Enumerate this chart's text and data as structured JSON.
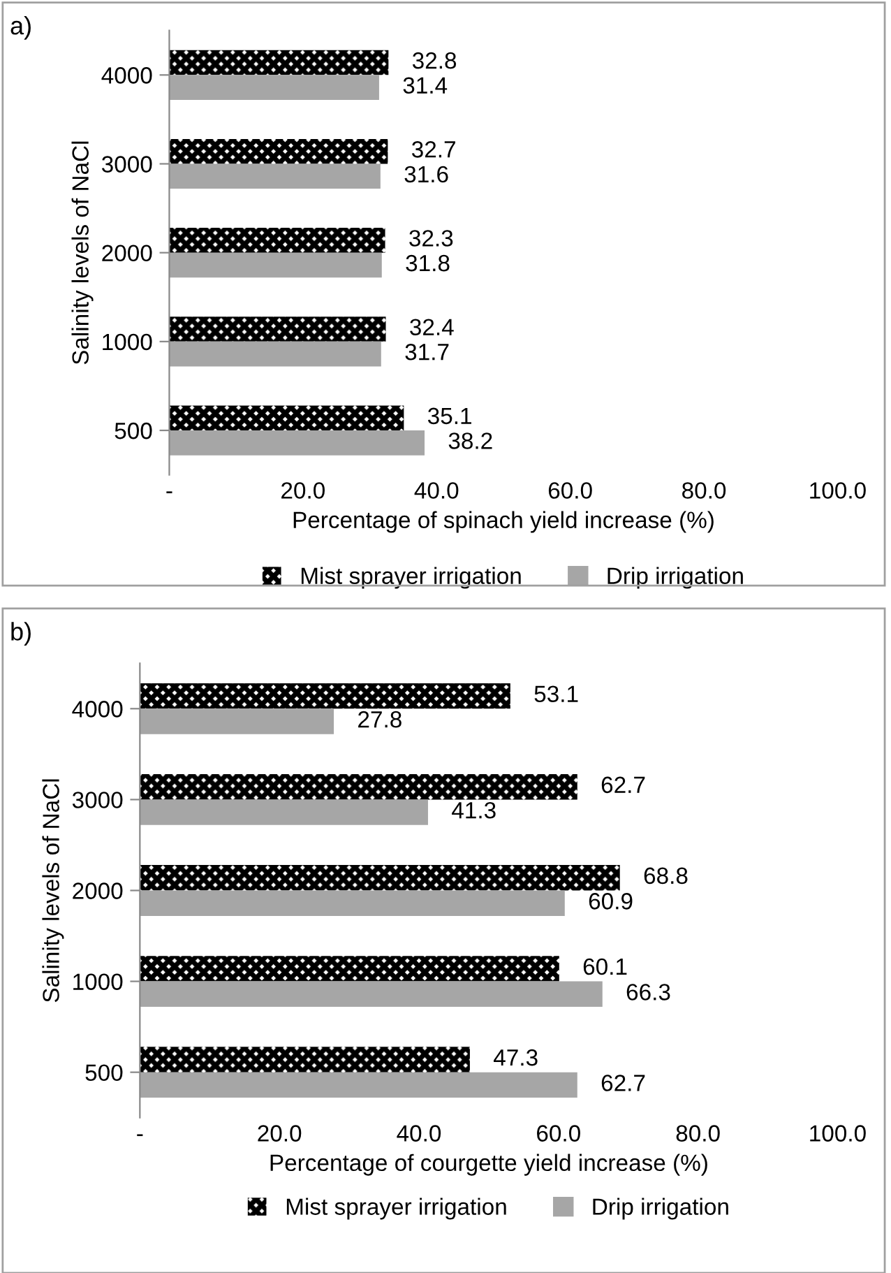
{
  "chart_data": [
    {
      "type": "bar",
      "orientation": "horizontal",
      "annotations": [
        "a)"
      ],
      "ylabel": "Salinity levels of NaCl",
      "xlabel": "Percentage of spinach yield increase (%)",
      "categories": [
        "4000",
        "3000",
        "2000",
        "1000",
        "500"
      ],
      "series": [
        {
          "name": "Mist sprayer irrigation",
          "color": "#000000",
          "values": [
            32.8,
            32.7,
            32.3,
            32.4,
            35.1
          ]
        },
        {
          "name": "Drip irrigation",
          "color": "#a6a6a6",
          "values": [
            31.4,
            31.6,
            31.8,
            31.7,
            38.2
          ]
        }
      ],
      "xlim": [
        0,
        100
      ],
      "xticks": [
        {
          "value": 0,
          "label": "-"
        },
        {
          "value": 20,
          "label": "20.0"
        },
        {
          "value": 40,
          "label": "40.0"
        },
        {
          "value": 60,
          "label": "60.0"
        },
        {
          "value": 80,
          "label": "80.0"
        },
        {
          "value": 100,
          "label": "100.0"
        }
      ],
      "data_labels": true,
      "legend": "bottom",
      "grid": false
    },
    {
      "type": "bar",
      "orientation": "horizontal",
      "annotations": [
        "b)"
      ],
      "ylabel": "Salinity levels of NaCl",
      "xlabel": "Percentage of courgette yield increase (%)",
      "categories": [
        "4000",
        "3000",
        "2000",
        "1000",
        "500"
      ],
      "series": [
        {
          "name": "Mist sprayer irrigation",
          "color": "#000000",
          "values": [
            53.1,
            62.7,
            68.8,
            60.1,
            47.3
          ]
        },
        {
          "name": "Drip irrigation",
          "color": "#a6a6a6",
          "values": [
            27.8,
            41.3,
            60.9,
            66.3,
            62.7
          ]
        }
      ],
      "xlim": [
        0,
        100
      ],
      "xticks": [
        {
          "value": 0,
          "label": "-"
        },
        {
          "value": 20,
          "label": "20.0"
        },
        {
          "value": 40,
          "label": "40.0"
        },
        {
          "value": 60,
          "label": "60.0"
        },
        {
          "value": 80,
          "label": "80.0"
        },
        {
          "value": 100,
          "label": "100.0"
        }
      ],
      "data_labels": true,
      "legend": "bottom",
      "grid": false
    }
  ]
}
